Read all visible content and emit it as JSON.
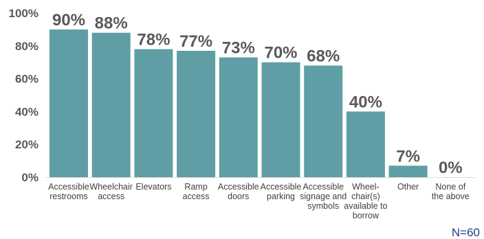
{
  "chart_data": {
    "type": "bar",
    "categories": [
      [
        "Accessible",
        "restrooms"
      ],
      [
        "Wheelchair",
        "access"
      ],
      [
        "Elevators"
      ],
      [
        "Ramp",
        "access"
      ],
      [
        "Accessible",
        "doors"
      ],
      [
        "Accessible",
        "parking"
      ],
      [
        "Accessible",
        "signage and",
        "symbols"
      ],
      [
        "Wheel-",
        "chair(s)",
        "available to",
        "borrow"
      ],
      [
        "Other"
      ],
      [
        "None of",
        "the above"
      ]
    ],
    "values": [
      90,
      88,
      78,
      77,
      73,
      70,
      68,
      40,
      7,
      0
    ],
    "data_labels": [
      "90%",
      "88%",
      "78%",
      "77%",
      "73%",
      "70%",
      "68%",
      "40%",
      "7%",
      "0%"
    ],
    "yticks": [
      "0%",
      "20%",
      "40%",
      "60%",
      "80%",
      "100%"
    ],
    "ylim": [
      0,
      100
    ],
    "title": "",
    "xlabel": "",
    "ylabel": "",
    "grid": false,
    "bar_color": "#5f9ea4",
    "label_color": "#595959",
    "note": "N=60",
    "note_color": "#1f3f86"
  }
}
